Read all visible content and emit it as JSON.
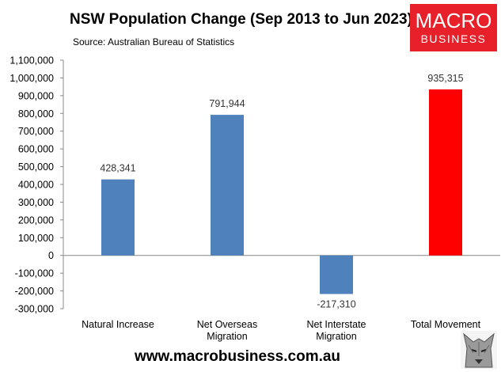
{
  "header": {
    "title": "NSW Population Change (Sep 2013 to Jun 2023)",
    "source": "Source: Australian Bureau of Statistics"
  },
  "logo": {
    "line1": "MACRO",
    "line2": "BUSINESS",
    "color": "#e8202a"
  },
  "footer": {
    "website": "www.macrobusiness.com.au",
    "mascot_icon": "wolf-icon"
  },
  "colors": {
    "bar_default": "#4f81bd",
    "bar_highlight": "#ff0000"
  },
  "chart_data": {
    "type": "bar",
    "title": "NSW Population Change (Sep 2013 to Jun 2023)",
    "xlabel": "",
    "ylabel": "",
    "ylim": [
      -300000,
      1100000
    ],
    "yticks": [
      1100000,
      1000000,
      900000,
      800000,
      700000,
      600000,
      500000,
      400000,
      300000,
      200000,
      100000,
      0,
      -100000,
      -200000,
      -300000
    ],
    "ytick_labels": [
      "1,100,000",
      "1,000,000",
      "900,000",
      "800,000",
      "700,000",
      "600,000",
      "500,000",
      "400,000",
      "300,000",
      "200,000",
      "100,000",
      "0",
      "-100,000",
      "-200,000",
      "-300,000"
    ],
    "grid": false,
    "legend": "none",
    "categories": [
      [
        "Natural Increase"
      ],
      [
        "Net Overseas",
        "Migration"
      ],
      [
        "Net Interstate",
        "Migration"
      ],
      [
        "Total Movement"
      ]
    ],
    "values": [
      428341,
      791944,
      -217310,
      935315
    ],
    "value_labels": [
      "428,341",
      "791,944",
      "-217,310",
      "935,315"
    ],
    "bar_colors": [
      "#4f81bd",
      "#4f81bd",
      "#4f81bd",
      "#ff0000"
    ]
  }
}
